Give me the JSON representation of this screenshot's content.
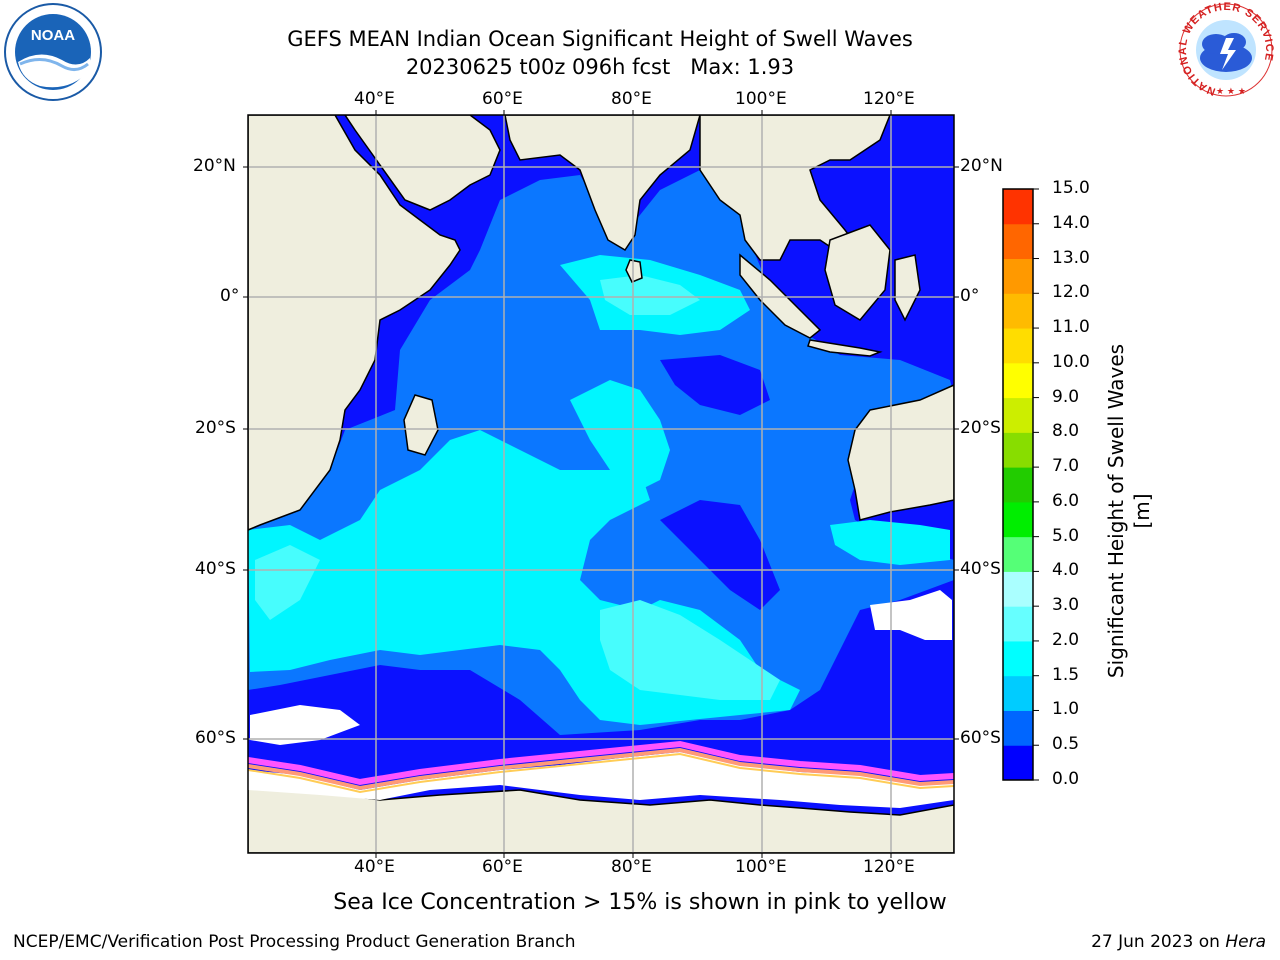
{
  "header": {
    "title": "GEFS MEAN Indian Ocean Significant Height of Swell Waves",
    "subtitle": "20230625 t00z 096h fcst   Max: 1.93"
  },
  "map": {
    "lon_labels": [
      "40°E",
      "60°E",
      "80°E",
      "100°E",
      "120°E"
    ],
    "lat_labels": [
      "20°N",
      "0°",
      "20°S",
      "40°S",
      "60°S"
    ],
    "colors": {
      "land": "#efeede",
      "ocean_0_05": "#0b11ff",
      "ocean_05_1": "#0b77ff",
      "ocean_1_15": "#00f6ff",
      "ocean_15_2": "#47fdfd",
      "sea_ice": "#ffffff",
      "ice_edge": [
        "#ff55ff",
        "#ff9a77",
        "#ffcc55"
      ],
      "grid": "#b0b0b0"
    }
  },
  "colorbar": {
    "label": "Significant Height of Swell Waves [m]",
    "ticks": [
      "0.0",
      "0.5",
      "1.0",
      "1.5",
      "2.0",
      "3.0",
      "4.0",
      "5.0",
      "6.0",
      "7.0",
      "8.0",
      "9.0",
      "10.0",
      "11.0",
      "12.0",
      "13.0",
      "14.0",
      "15.0"
    ],
    "colors": [
      "#0000ff",
      "#0066ff",
      "#00ccff",
      "#00ffff",
      "#66ffff",
      "#aaffff",
      "#55ff77",
      "#00ee00",
      "#22cc00",
      "#88dd00",
      "#ccee00",
      "#ffff00",
      "#ffdd00",
      "#ffbb00",
      "#ff9900",
      "#ff6600",
      "#ff3300",
      "#ff0000"
    ]
  },
  "caption": "Sea Ice Concentration > 15% is shown in pink to yellow",
  "footer": {
    "left": "NCEP/EMC/Verification Post Processing Product Generation Branch",
    "right_date": "27 Jun 2023 on ",
    "right_host": "Hera"
  },
  "logos": {
    "noaa": "NOAA",
    "nws_ring": "NATIONAL WEATHER SERVICE"
  }
}
